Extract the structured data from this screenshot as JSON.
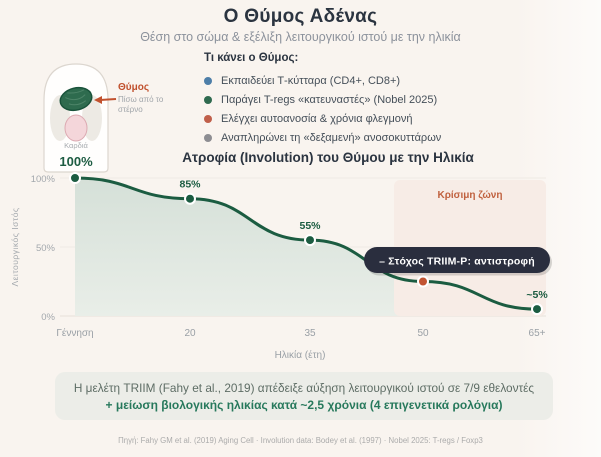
{
  "header": {
    "title": "Ο Θύμος Αδένας",
    "subtitle": "Θέση στο σώμα & εξέλιξη λειτουργικού ιστού με την ηλικία"
  },
  "anatomy": {
    "thymus_label": "Θύμος",
    "thymus_sub_line1": "Πίσω από το",
    "thymus_sub_line2": "στέρνο",
    "heart_label": "Καρδιά",
    "label_color": "#c1512e"
  },
  "functions": {
    "title": "Τι κάνει ο Θύμος:",
    "items": [
      {
        "color": "#4d7ea8",
        "label": "Εκπαιδεύει Τ-κύτταρα (CD4+, CD8+)"
      },
      {
        "color": "#2f6a4f",
        "label": "Παράγει T-regs «κατευναστές» (Nobel 2025)"
      },
      {
        "color": "#c05f4a",
        "label": "Ελέγχει αυτοανοσία & χρόνια φλεγμονή"
      },
      {
        "color": "#8d8d92",
        "label": "Αναπληρώνει τη «δεξαμενή» ανοσοκυττάρων"
      }
    ]
  },
  "chart_data": {
    "type": "area",
    "title": "Ατροφία (Involution) του Θύμου με την Ηλικία",
    "categories": [
      "Γέννηση",
      "20",
      "35",
      "50",
      "65+"
    ],
    "values": [
      100,
      85,
      55,
      25,
      5
    ],
    "value_labels": [
      "100%",
      "85%",
      "55%",
      "",
      "~5%"
    ],
    "xlabel": "Ηλικία (έτη)",
    "ylabel": "Λειτουργικός Ιστός",
    "ylim": [
      0,
      100
    ],
    "yticks": [
      "100%",
      "50%",
      "0%"
    ],
    "line_color": "#1b5c41",
    "highlight_point_index": 3,
    "highlight_color": "#c25432",
    "critical_zone": {
      "label": "Κρίσιμη ζώνη",
      "from_age": 45,
      "to_age": 62,
      "color": "#f7ece6",
      "label_color": "#c0613f"
    },
    "annotation": "– Στόχος TRIIM-P: αντιστροφή",
    "annotation_bg": "#2a2e3e"
  },
  "study": {
    "line1": "Η μελέτη TRIIM (Fahy et al., 2019) απέδειξε αύξηση λειτουργικού ιστού σε 7/9 εθελοντές",
    "line2": "+ μείωση βιολογικής ηλικίας κατά ~2,5 χρόνια (4 επιγενετικά ρολόγια)"
  },
  "footer": {
    "source": "Πηγή: Fahy GM et al. (2019) Aging Cell · Involution data: Bodey et al. (1997) · Nobel 2025: T-regs / Foxp3"
  }
}
